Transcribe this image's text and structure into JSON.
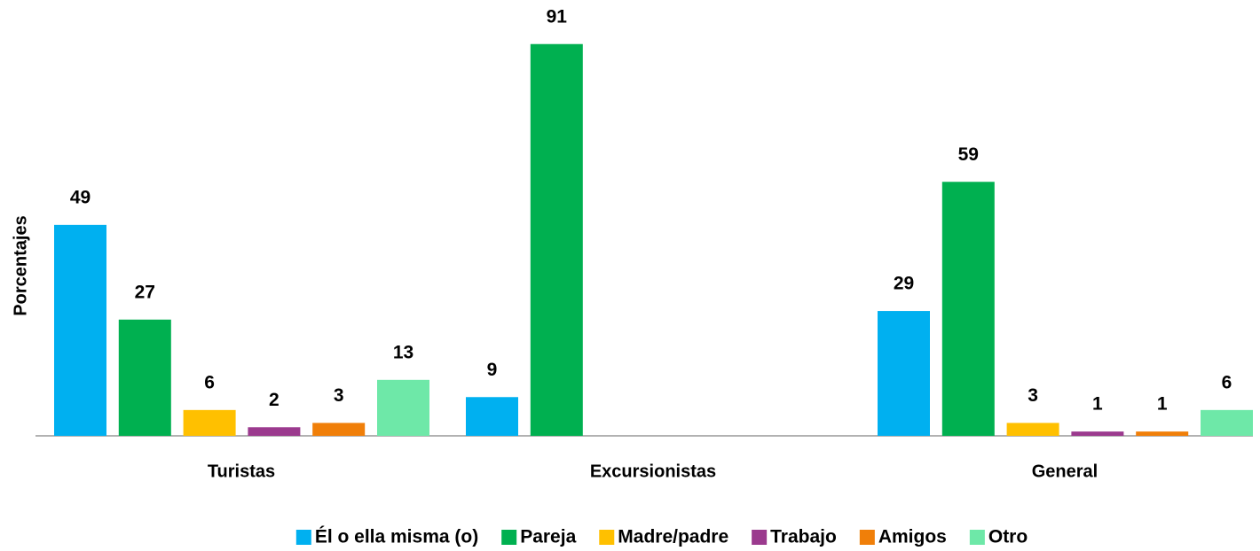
{
  "chart_data": {
    "type": "bar",
    "y_label": "Porcentajes",
    "categories": [
      "Turistas",
      "Excursionistas",
      "General"
    ],
    "series": [
      {
        "name": "Él o ella misma (o)",
        "color": "#00b0f0",
        "values": [
          49,
          9,
          29
        ]
      },
      {
        "name": "Pareja",
        "color": "#00b050",
        "values": [
          27,
          91,
          59
        ]
      },
      {
        "name": "Madre/padre",
        "color": "#ffc000",
        "values": [
          6,
          null,
          3
        ]
      },
      {
        "name": "Trabajo",
        "color": "#9b3a8e",
        "values": [
          2,
          null,
          1
        ]
      },
      {
        "name": "Amigos",
        "color": "#f07f09",
        "values": [
          3,
          null,
          1
        ]
      },
      {
        "name": "Otro",
        "color": "#6ee8a8",
        "values": [
          13,
          null,
          6
        ]
      }
    ],
    "grid": false
  }
}
